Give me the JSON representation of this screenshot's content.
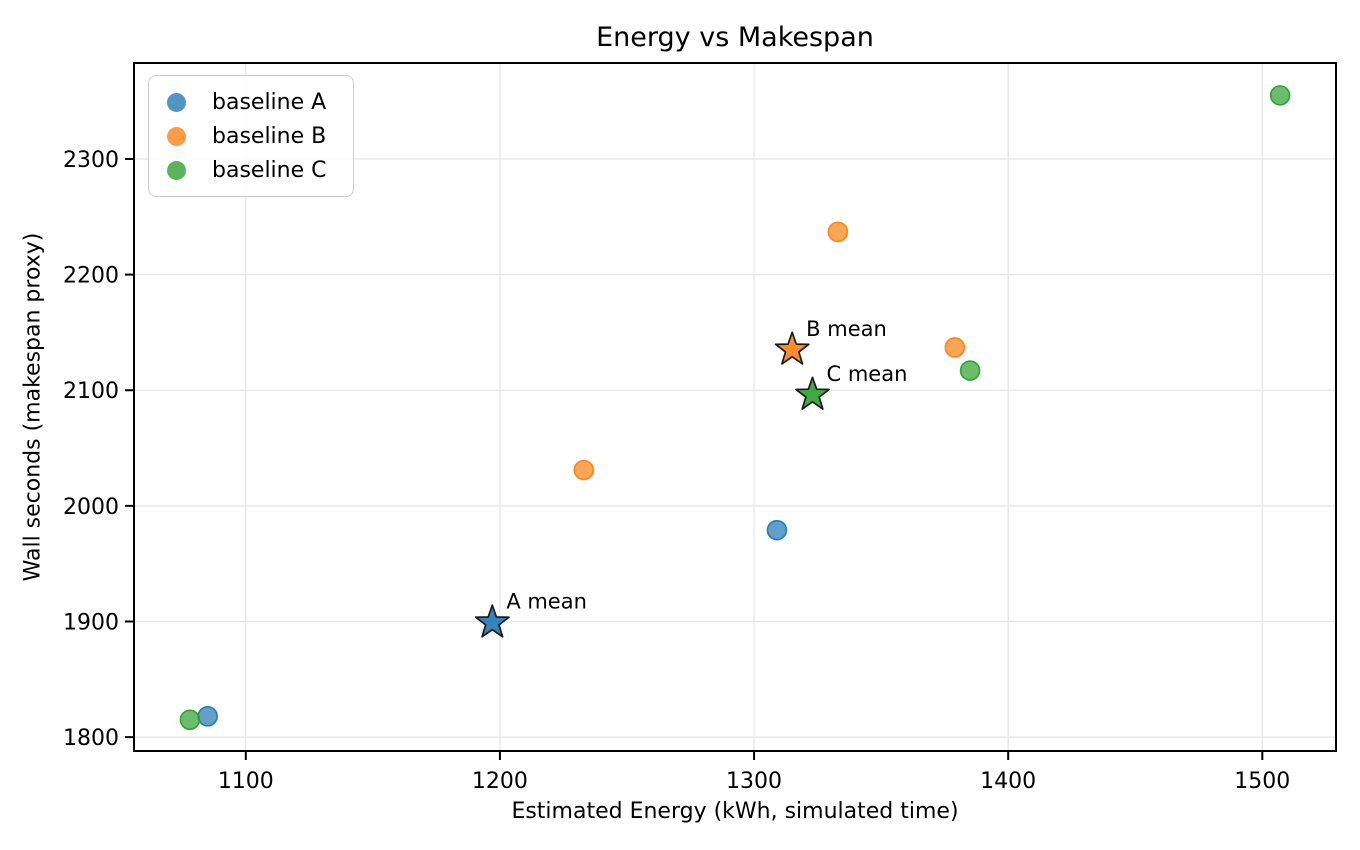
{
  "title": "Energy vs Makespan",
  "xlabel": "Estimated Energy (kWh, simulated time)",
  "ylabel": "Wall seconds (makespan proxy)",
  "chart_data": {
    "type": "scatter",
    "title": "Energy vs Makespan",
    "xlabel": "Estimated Energy (kWh, simulated time)",
    "ylabel": "Wall seconds (makespan proxy)",
    "xlim": [
      1056,
      1529
    ],
    "ylim": [
      1788,
      2383
    ],
    "x_ticks": [
      1100,
      1200,
      1300,
      1400,
      1500
    ],
    "y_ticks": [
      1800,
      1900,
      2000,
      2100,
      2200,
      2300
    ],
    "grid": true,
    "legend_position": "upper left",
    "series": [
      {
        "name": "baseline A",
        "color": "#1f77b4",
        "points": [
          [
            1085,
            1818
          ],
          [
            1309,
            1979
          ]
        ],
        "mean": {
          "x": 1197,
          "y": 1899,
          "label": "A mean"
        }
      },
      {
        "name": "baseline B",
        "color": "#ff7f0e",
        "points": [
          [
            1233,
            2031
          ],
          [
            1333,
            2237
          ],
          [
            1379,
            2137
          ]
        ],
        "mean": {
          "x": 1315,
          "y": 2135,
          "label": "B mean"
        }
      },
      {
        "name": "baseline C",
        "color": "#2ca02c",
        "points": [
          [
            1078,
            1815
          ],
          [
            1385,
            2117
          ],
          [
            1507,
            2355
          ]
        ],
        "mean": {
          "x": 1323,
          "y": 2096,
          "label": "C mean"
        }
      }
    ]
  }
}
